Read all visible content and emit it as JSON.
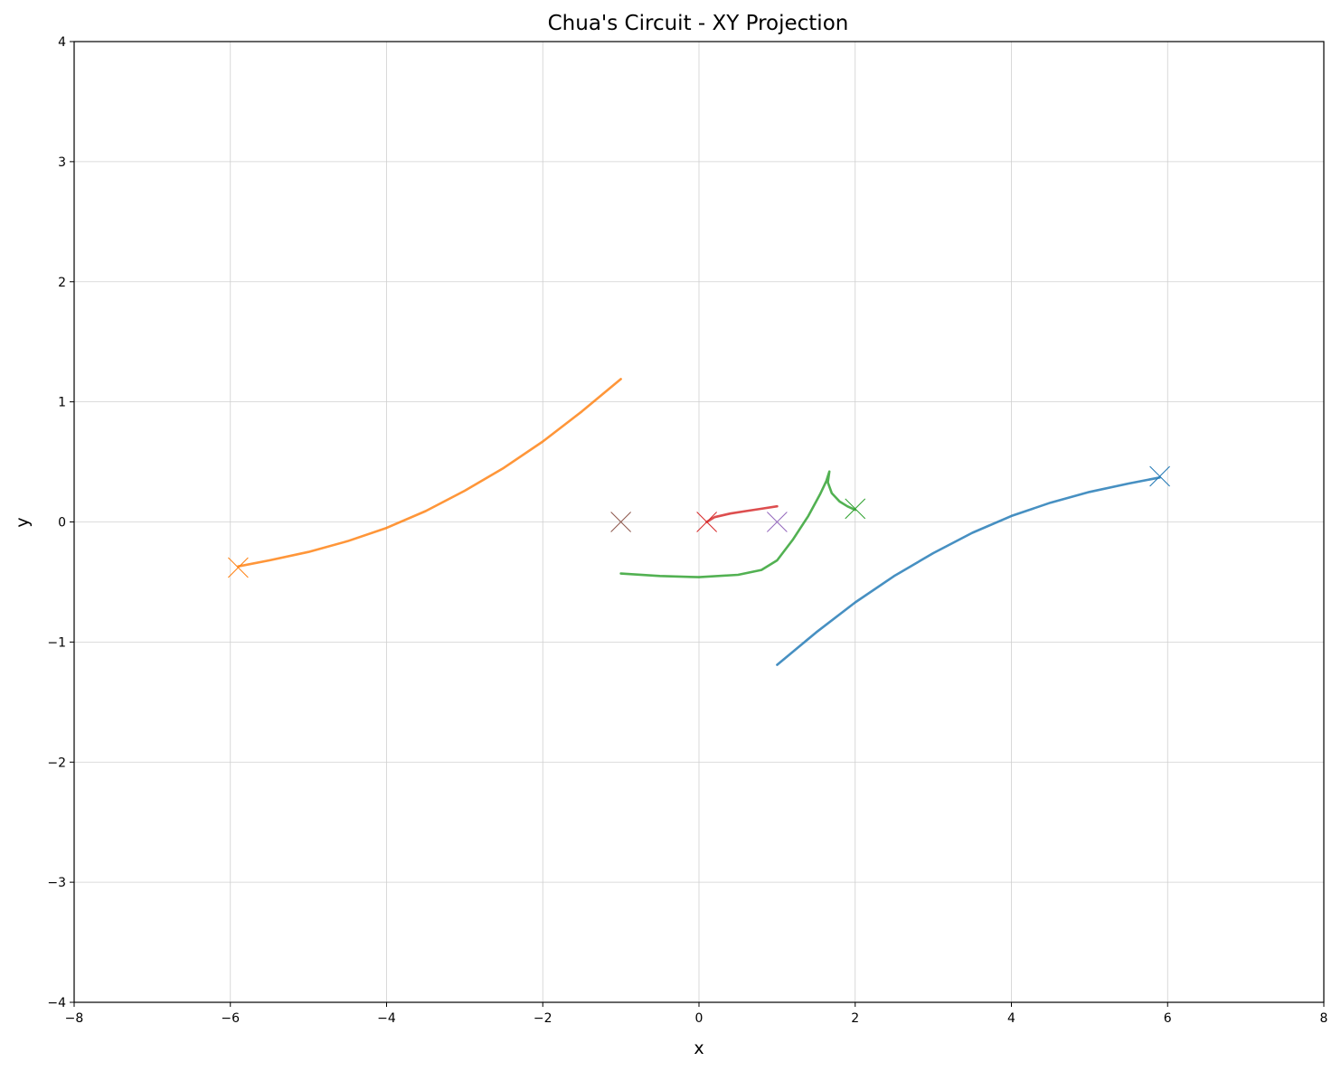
{
  "chart_data": {
    "type": "line",
    "title": "Chua's Circuit - XY Projection",
    "xlabel": "x",
    "ylabel": "y",
    "xlim": [
      -8,
      8
    ],
    "ylim": [
      -4,
      4
    ],
    "grid": true,
    "x_ticks": [
      -8,
      -6,
      -4,
      -2,
      0,
      2,
      4,
      6,
      8
    ],
    "y_ticks": [
      -4,
      -3,
      -2,
      -1,
      0,
      1,
      2,
      3,
      4
    ],
    "series": [
      {
        "color": "#1f77b4",
        "x": [
          1.0,
          1.5,
          2.0,
          2.5,
          3.0,
          3.5,
          4.0,
          4.5,
          5.0,
          5.5,
          5.9
        ],
        "y": [
          -1.19,
          -0.92,
          -0.67,
          -0.45,
          -0.26,
          -0.09,
          0.05,
          0.16,
          0.25,
          0.32,
          0.37
        ],
        "end_marker": [
          5.9,
          0.38
        ]
      },
      {
        "color": "#ff7f0e",
        "x": [
          -1.0,
          -1.5,
          -2.0,
          -2.5,
          -3.0,
          -3.5,
          -4.0,
          -4.5,
          -5.0,
          -5.5,
          -5.9
        ],
        "y": [
          1.19,
          0.92,
          0.67,
          0.45,
          0.26,
          0.09,
          -0.05,
          -0.16,
          -0.25,
          -0.32,
          -0.37
        ],
        "end_marker": [
          -5.9,
          -0.38
        ]
      },
      {
        "color": "#2ca02c",
        "x": [
          -1.0,
          -0.5,
          0.0,
          0.5,
          0.8,
          1.0,
          1.2,
          1.4,
          1.55,
          1.63,
          1.66,
          1.67,
          1.65,
          1.7,
          1.8,
          1.9,
          2.0
        ],
        "y": [
          -0.43,
          -0.45,
          -0.46,
          -0.44,
          -0.4,
          -0.32,
          -0.15,
          0.05,
          0.23,
          0.34,
          0.4,
          0.42,
          0.33,
          0.24,
          0.17,
          0.13,
          0.1
        ],
        "end_marker": [
          2.0,
          0.11
        ]
      },
      {
        "color": "#d62728",
        "x": [
          1.0,
          0.8,
          0.6,
          0.4,
          0.2,
          0.1
        ],
        "y": [
          0.13,
          0.11,
          0.09,
          0.07,
          0.04,
          0.0
        ],
        "end_marker": [
          0.1,
          0.0
        ]
      },
      {
        "color": "#9467bd",
        "x": [
          1.0
        ],
        "y": [
          0.0
        ],
        "end_marker": [
          1.0,
          0.0
        ]
      },
      {
        "color": "#8c564b",
        "x": [
          -1.0
        ],
        "y": [
          0.0
        ],
        "end_marker": [
          -1.0,
          0.0
        ]
      }
    ]
  }
}
